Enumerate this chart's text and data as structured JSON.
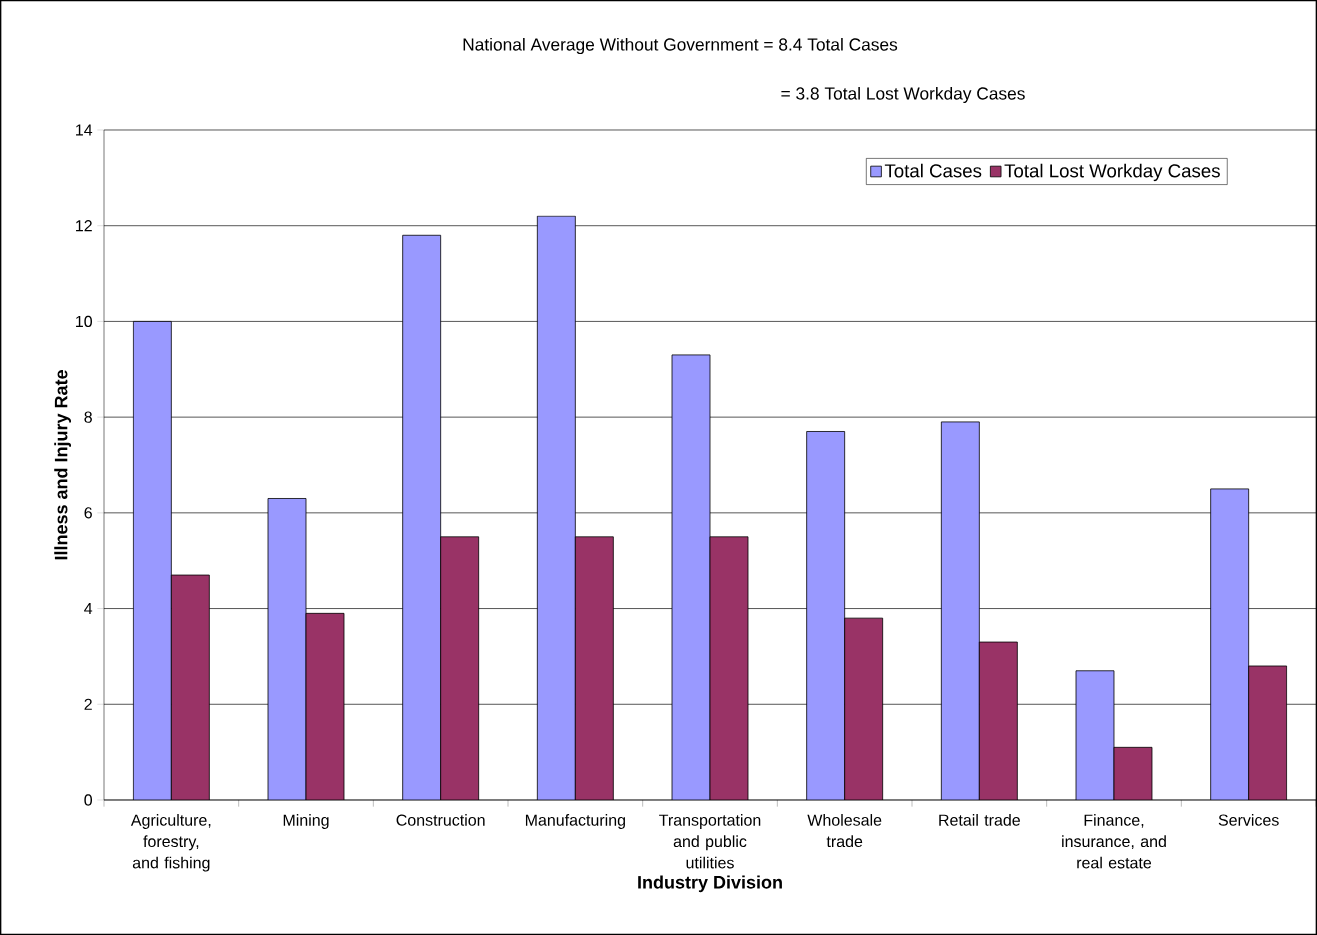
{
  "chart_data": {
    "type": "bar",
    "annotations": [
      "National Average Without Government = 8.4 Total Cases",
      "= 3.8 Total Lost Workday Cases"
    ],
    "xlabel": "Industry Division",
    "ylabel": "Illness and Injury Rate",
    "categories": [
      "Agriculture, forestry, and fishing",
      "Mining",
      "Construction",
      "Manufacturing",
      "Transportation and public utilities",
      "Wholesale trade",
      "Retail trade",
      "Finance, insurance, and real estate",
      "Services"
    ],
    "series": [
      {
        "name": "Total Cases",
        "color": "#9999ff",
        "values": [
          10,
          6.3,
          11.8,
          12.2,
          9.3,
          7.7,
          7.9,
          2.7,
          6.5
        ]
      },
      {
        "name": "Total Lost Workday Cases",
        "color": "#993366",
        "values": [
          4.7,
          3.9,
          5.5,
          5.5,
          5.5,
          3.8,
          3.3,
          1.1,
          2.8
        ]
      }
    ],
    "ylim": [
      0,
      14
    ],
    "yticks": [
      0,
      2,
      4,
      6,
      8,
      10,
      12,
      14
    ],
    "grid": "y",
    "legend": "top right"
  }
}
